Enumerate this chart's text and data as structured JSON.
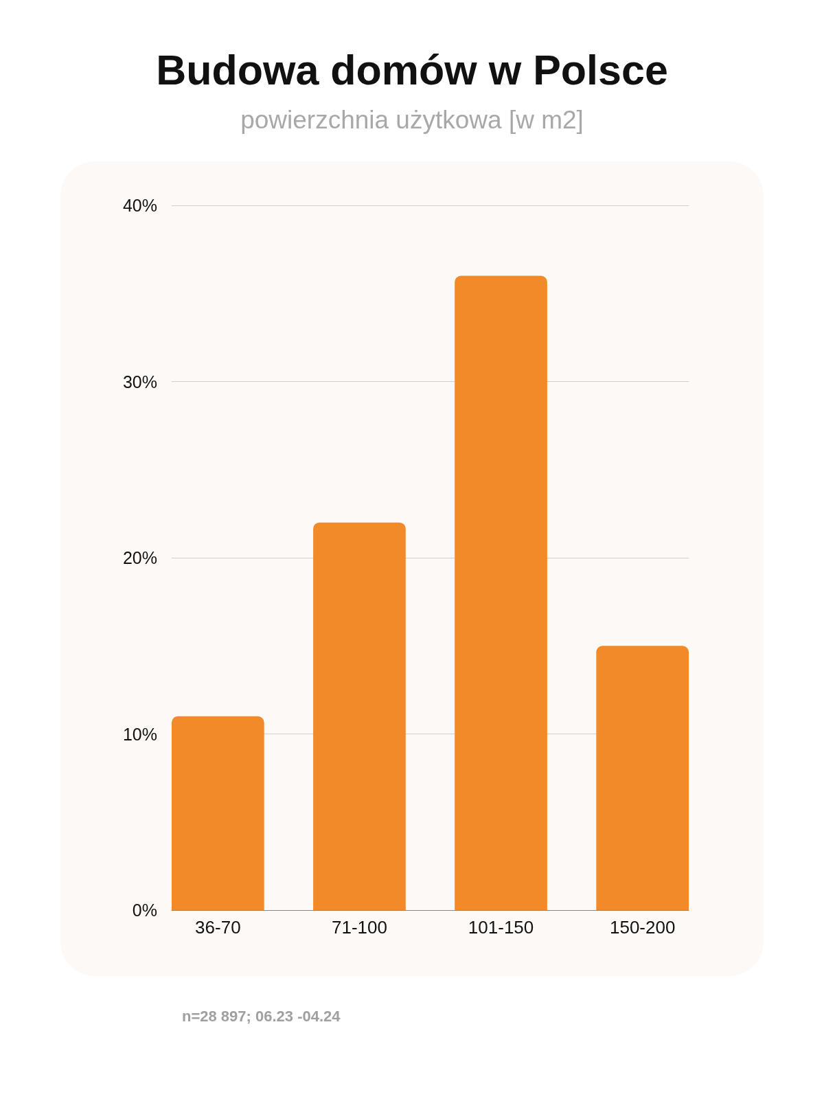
{
  "chart_data": {
    "type": "bar",
    "title": "Budowa domów w Polsce",
    "subtitle": "powierzchnia użytkowa [w m2]",
    "categories": [
      "36-70",
      "71-100",
      "101-150",
      "150-200"
    ],
    "values": [
      11,
      22,
      36,
      15
    ],
    "color": "#f28a2a",
    "ylim": [
      0,
      40
    ],
    "yticks": [
      {
        "value": 0,
        "label": "0%"
      },
      {
        "value": 10,
        "label": "10%"
      },
      {
        "value": 20,
        "label": "20%"
      },
      {
        "value": 30,
        "label": "30%"
      },
      {
        "value": 40,
        "label": "40%"
      }
    ],
    "grid": "y",
    "annotations": [
      "n=28 897; 06.23 -04.24"
    ]
  }
}
